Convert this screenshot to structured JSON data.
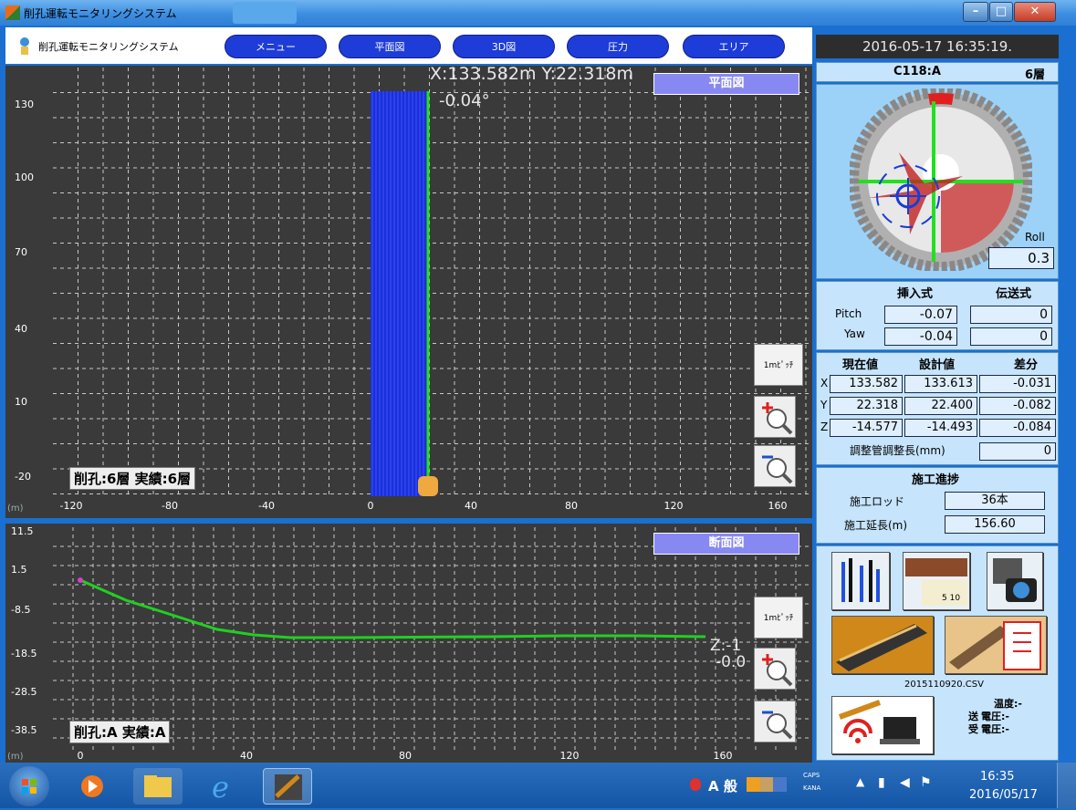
{
  "window": {
    "title": "削孔運転モニタリングシステム"
  },
  "app": {
    "title": "削孔運転モニタリングシステム"
  },
  "nav": [
    "メニュー",
    "平面図",
    "3D図",
    "圧力",
    "エリア"
  ],
  "plan": {
    "panel_label": "平面図",
    "coord_readout": "X:133.582m Y:22.318m",
    "angle": "-0.04°",
    "y_ticks": [
      "130",
      "100",
      "70",
      "40",
      "10",
      "-20"
    ],
    "x_ticks": [
      "-120",
      "-80",
      "-40",
      "0",
      "40",
      "80",
      "120",
      "160"
    ],
    "unit": "(m)",
    "status": "削孔:6層 実績:6層",
    "pitch_button": "1mﾋﾟｯﾁ"
  },
  "section": {
    "panel_label": "断面図",
    "readout_z": "Z:-1",
    "readout_angle": "-0.0",
    "y_ticks": [
      "11.5",
      "1.5",
      "-8.5",
      "-18.5",
      "-28.5",
      "-38.5"
    ],
    "x_ticks": [
      "0",
      "40",
      "80",
      "120",
      "160"
    ],
    "unit": "(m)",
    "status": "削孔:A 実績:A",
    "pitch_button": "1mﾋﾟｯﾁ"
  },
  "right": {
    "datetime": "2016-05-17 16:35:19.",
    "point": "C118:A",
    "layer": "6層",
    "roll_label": "Roll",
    "roll": "0.3",
    "head_insert": "挿入式",
    "head_transmit": "伝送式",
    "pitch_label": "Pitch",
    "yaw_label": "Yaw",
    "pitch_insert": "-0.07",
    "pitch_transmit": "0",
    "yaw_insert": "-0.04",
    "yaw_transmit": "0",
    "col_current": "現在値",
    "col_design": "設計値",
    "col_diff": "差分",
    "rows": [
      {
        "axis": "X",
        "current": "133.582",
        "design": "133.613",
        "diff": "-0.031"
      },
      {
        "axis": "Y",
        "current": "22.318",
        "design": "22.400",
        "diff": "-0.082"
      },
      {
        "axis": "Z",
        "current": "-14.577",
        "design": "-14.493",
        "diff": "-0.084"
      }
    ],
    "adjust_label": "調整管調整長(mm)",
    "adjust_value": "0",
    "progress_title": "施工進捗",
    "rod_label": "施工ロッド",
    "rod_value": "36本",
    "length_label": "施工延長(m)",
    "length_value": "156.60",
    "csv_file": "2015110920.CSV",
    "temp": "温度:-",
    "send_voltage": "電圧:-",
    "recv_voltage": "電圧:-",
    "send_label": "送",
    "recv_label": "受"
  },
  "taskbar": {
    "time": "16:35",
    "date": "2016/05/17",
    "ime": "A 般",
    "caps": "CAPS",
    "kana": "KANA"
  }
}
